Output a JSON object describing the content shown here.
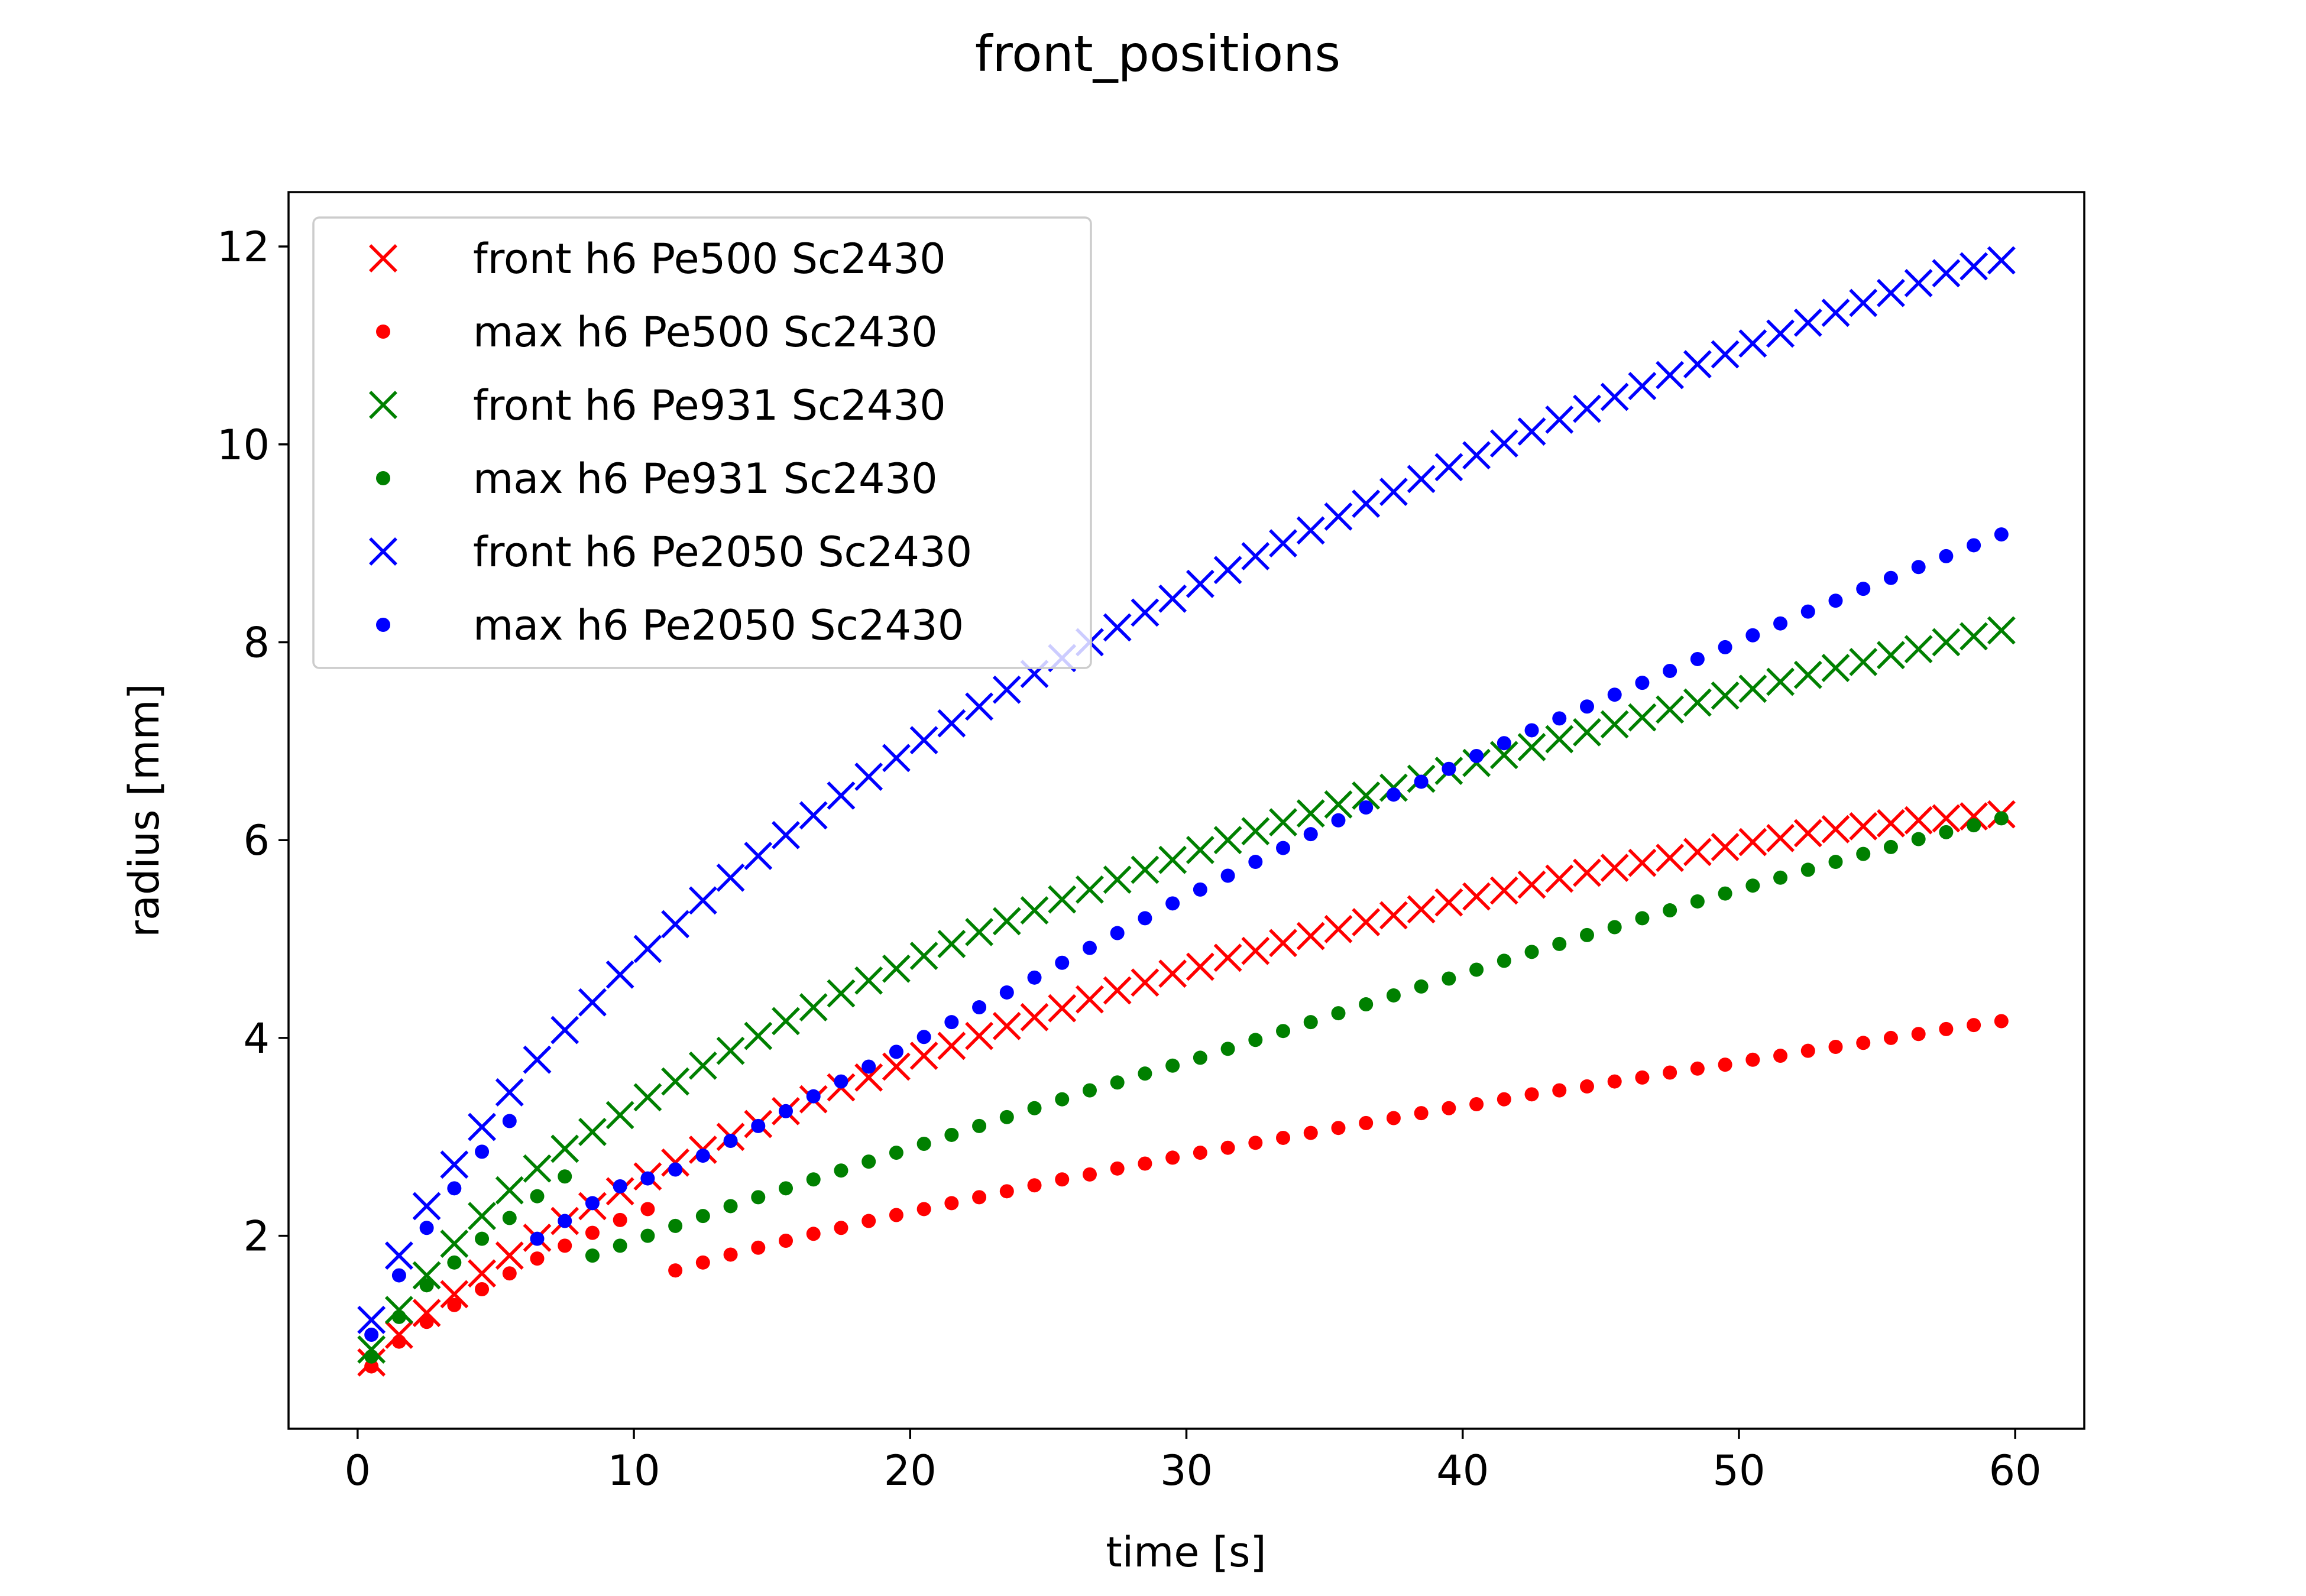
{
  "chart_data": {
    "type": "scatter",
    "title": "front_positions",
    "xlabel": "time [s]",
    "ylabel": "radius [mm]",
    "xlim": [
      -2.5,
      62.5
    ],
    "ylim": [
      0.05,
      12.55
    ],
    "xticks": [
      0,
      10,
      20,
      30,
      40,
      50,
      60
    ],
    "yticks": [
      2,
      4,
      6,
      8,
      10,
      12
    ],
    "grid": false,
    "legend_position": "upper-left",
    "series": [
      {
        "name": "front h6 Pe500 Sc2430",
        "marker": "x",
        "color": "#ff0000",
        "x": [
          0.5,
          1.5,
          2.5,
          3.5,
          4.5,
          5.5,
          6.5,
          7.5,
          8.5,
          9.5,
          10.5,
          11.5,
          12.5,
          13.5,
          14.5,
          15.5,
          16.5,
          17.5,
          18.5,
          19.5,
          20.5,
          21.5,
          22.5,
          23.5,
          24.5,
          25.5,
          26.5,
          27.5,
          28.5,
          29.5,
          30.5,
          31.5,
          32.5,
          33.5,
          34.5,
          35.5,
          36.5,
          37.5,
          38.5,
          39.5,
          40.5,
          41.5,
          42.5,
          43.5,
          44.5,
          45.5,
          46.5,
          47.5,
          48.5,
          49.5,
          50.5,
          51.5,
          52.5,
          53.5,
          54.5,
          55.5,
          56.5,
          57.5,
          58.5,
          59.5
        ],
        "y": [
          0.72,
          1.0,
          1.22,
          1.41,
          1.62,
          1.8,
          1.98,
          2.15,
          2.3,
          2.45,
          2.6,
          2.74,
          2.87,
          3.0,
          3.13,
          3.26,
          3.38,
          3.5,
          3.6,
          3.71,
          3.82,
          3.92,
          4.02,
          4.12,
          4.21,
          4.3,
          4.39,
          4.48,
          4.56,
          4.65,
          4.72,
          4.81,
          4.88,
          4.96,
          5.03,
          5.1,
          5.17,
          5.24,
          5.3,
          5.37,
          5.43,
          5.49,
          5.55,
          5.61,
          5.67,
          5.72,
          5.77,
          5.82,
          5.88,
          5.93,
          5.98,
          6.02,
          6.07,
          6.11,
          6.14,
          6.17,
          6.2,
          6.22,
          6.24,
          6.26
        ]
      },
      {
        "name": "max h6 Pe500 Sc2430",
        "marker": "o",
        "color": "#ff0000",
        "x": [
          0.5,
          1.5,
          2.5,
          3.5,
          4.5,
          5.5,
          6.5,
          7.5,
          8.5,
          9.5,
          10.5,
          11.5,
          12.5,
          13.5,
          14.5,
          15.5,
          16.5,
          17.5,
          18.5,
          19.5,
          20.5,
          21.5,
          22.5,
          23.5,
          24.5,
          25.5,
          26.5,
          27.5,
          28.5,
          29.5,
          30.5,
          31.5,
          32.5,
          33.5,
          34.5,
          35.5,
          36.5,
          37.5,
          38.5,
          39.5,
          40.5,
          41.5,
          42.5,
          43.5,
          44.5,
          45.5,
          46.5,
          47.5,
          48.5,
          49.5,
          50.5,
          51.5,
          52.5,
          53.5,
          54.5,
          55.5,
          56.5,
          57.5,
          58.5,
          59.5
        ],
        "y": [
          0.68,
          0.93,
          1.13,
          1.3,
          1.46,
          1.62,
          1.77,
          1.9,
          2.03,
          2.16,
          2.27,
          1.65,
          1.73,
          1.81,
          1.88,
          1.95,
          2.02,
          2.08,
          2.15,
          2.21,
          2.27,
          2.33,
          2.39,
          2.45,
          2.51,
          2.57,
          2.62,
          2.68,
          2.73,
          2.79,
          2.84,
          2.89,
          2.94,
          2.99,
          3.04,
          3.09,
          3.14,
          3.19,
          3.24,
          3.29,
          3.33,
          3.38,
          3.43,
          3.47,
          3.51,
          3.56,
          3.6,
          3.65,
          3.69,
          3.73,
          3.78,
          3.82,
          3.87,
          3.91,
          3.95,
          4.0,
          4.04,
          4.09,
          4.13,
          4.17
        ]
      },
      {
        "name": "front h6 Pe931 Sc2430",
        "marker": "x",
        "color": "#008000",
        "x": [
          0.5,
          1.5,
          2.5,
          3.5,
          4.5,
          5.5,
          6.5,
          7.5,
          8.5,
          9.5,
          10.5,
          11.5,
          12.5,
          13.5,
          14.5,
          15.5,
          16.5,
          17.5,
          18.5,
          19.5,
          20.5,
          21.5,
          22.5,
          23.5,
          24.5,
          25.5,
          26.5,
          27.5,
          28.5,
          29.5,
          30.5,
          31.5,
          32.5,
          33.5,
          34.5,
          35.5,
          36.5,
          37.5,
          38.5,
          39.5,
          40.5,
          41.5,
          42.5,
          43.5,
          44.5,
          45.5,
          46.5,
          47.5,
          48.5,
          49.5,
          50.5,
          51.5,
          52.5,
          53.5,
          54.5,
          55.5,
          56.5,
          57.5,
          58.5,
          59.5
        ],
        "y": [
          0.85,
          1.25,
          1.6,
          1.92,
          2.2,
          2.46,
          2.68,
          2.88,
          3.05,
          3.22,
          3.4,
          3.56,
          3.72,
          3.87,
          4.02,
          4.17,
          4.31,
          4.45,
          4.58,
          4.7,
          4.83,
          4.95,
          5.07,
          5.18,
          5.29,
          5.4,
          5.5,
          5.6,
          5.7,
          5.8,
          5.9,
          6.0,
          6.09,
          6.18,
          6.27,
          6.36,
          6.45,
          6.53,
          6.62,
          6.7,
          6.78,
          6.86,
          6.94,
          7.02,
          7.09,
          7.17,
          7.24,
          7.32,
          7.39,
          7.46,
          7.53,
          7.6,
          7.67,
          7.74,
          7.8,
          7.87,
          7.93,
          8.0,
          8.06,
          8.12
        ]
      },
      {
        "name": "max h6 Pe931 Sc2430",
        "marker": "o",
        "color": "#008000",
        "x": [
          0.5,
          1.5,
          2.5,
          3.5,
          4.5,
          5.5,
          6.5,
          7.5,
          8.5,
          9.5,
          10.5,
          11.5,
          12.5,
          13.5,
          14.5,
          15.5,
          16.5,
          17.5,
          18.5,
          19.5,
          20.5,
          21.5,
          22.5,
          23.5,
          24.5,
          25.5,
          26.5,
          27.5,
          28.5,
          29.5,
          30.5,
          31.5,
          32.5,
          33.5,
          34.5,
          35.5,
          36.5,
          37.5,
          38.5,
          39.5,
          40.5,
          41.5,
          42.5,
          43.5,
          44.5,
          45.5,
          46.5,
          47.5,
          48.5,
          49.5,
          50.5,
          51.5,
          52.5,
          53.5,
          54.5,
          55.5,
          56.5,
          57.5,
          58.5,
          59.5
        ],
        "y": [
          0.78,
          1.18,
          1.5,
          1.73,
          1.97,
          2.18,
          2.4,
          2.6,
          1.8,
          1.9,
          2.0,
          2.1,
          2.2,
          2.3,
          2.39,
          2.48,
          2.57,
          2.66,
          2.75,
          2.84,
          2.93,
          3.02,
          3.11,
          3.2,
          3.29,
          3.38,
          3.47,
          3.55,
          3.64,
          3.72,
          3.8,
          3.89,
          3.98,
          4.07,
          4.16,
          4.25,
          4.34,
          4.43,
          4.52,
          4.6,
          4.69,
          4.78,
          4.87,
          4.95,
          5.04,
          5.12,
          5.21,
          5.29,
          5.38,
          5.46,
          5.54,
          5.62,
          5.7,
          5.78,
          5.86,
          5.93,
          6.01,
          6.08,
          6.15,
          6.22
        ]
      },
      {
        "name": "front h6 Pe2050 Sc2430",
        "marker": "x",
        "color": "#0000ff",
        "x": [
          0.5,
          1.5,
          2.5,
          3.5,
          4.5,
          5.5,
          6.5,
          7.5,
          8.5,
          9.5,
          10.5,
          11.5,
          12.5,
          13.5,
          14.5,
          15.5,
          16.5,
          17.5,
          18.5,
          19.5,
          20.5,
          21.5,
          22.5,
          23.5,
          24.5,
          25.5,
          26.5,
          27.5,
          28.5,
          29.5,
          30.5,
          31.5,
          32.5,
          33.5,
          34.5,
          35.5,
          36.5,
          37.5,
          38.5,
          39.5,
          40.5,
          41.5,
          42.5,
          43.5,
          44.5,
          45.5,
          46.5,
          47.5,
          48.5,
          49.5,
          50.5,
          51.5,
          52.5,
          53.5,
          54.5,
          55.5,
          56.5,
          57.5,
          58.5,
          59.5
        ],
        "y": [
          1.15,
          1.8,
          2.3,
          2.72,
          3.1,
          3.45,
          3.78,
          4.08,
          4.36,
          4.64,
          4.9,
          5.15,
          5.39,
          5.62,
          5.84,
          6.05,
          6.25,
          6.45,
          6.64,
          6.83,
          7.01,
          7.18,
          7.35,
          7.52,
          7.68,
          7.84,
          8.0,
          8.15,
          8.3,
          8.44,
          8.59,
          8.73,
          8.87,
          9.0,
          9.13,
          9.27,
          9.4,
          9.52,
          9.65,
          9.77,
          9.89,
          10.01,
          10.13,
          10.25,
          10.36,
          10.48,
          10.59,
          10.7,
          10.81,
          10.91,
          11.02,
          11.12,
          11.23,
          11.33,
          11.43,
          11.53,
          11.63,
          11.73,
          11.8,
          11.86
        ]
      },
      {
        "name": "max h6 Pe2050 Sc2430",
        "marker": "o",
        "color": "#0000ff",
        "x": [
          0.5,
          1.5,
          2.5,
          3.5,
          4.5,
          5.5,
          6.5,
          7.5,
          8.5,
          9.5,
          10.5,
          11.5,
          12.5,
          13.5,
          14.5,
          15.5,
          16.5,
          17.5,
          18.5,
          19.5,
          20.5,
          21.5,
          22.5,
          23.5,
          24.5,
          25.5,
          26.5,
          27.5,
          28.5,
          29.5,
          30.5,
          31.5,
          32.5,
          33.5,
          34.5,
          35.5,
          36.5,
          37.5,
          38.5,
          39.5,
          40.5,
          41.5,
          42.5,
          43.5,
          44.5,
          45.5,
          46.5,
          47.5,
          48.5,
          49.5,
          50.5,
          51.5,
          52.5,
          53.5,
          54.5,
          55.5,
          56.5,
          57.5,
          58.5,
          59.5
        ],
        "y": [
          1.0,
          1.6,
          2.08,
          2.48,
          2.85,
          3.16,
          1.97,
          2.15,
          2.33,
          2.5,
          2.58,
          2.67,
          2.81,
          2.96,
          3.11,
          3.26,
          3.41,
          3.56,
          3.71,
          3.86,
          4.01,
          4.16,
          4.31,
          4.46,
          4.61,
          4.76,
          4.91,
          5.06,
          5.21,
          5.36,
          5.5,
          5.64,
          5.78,
          5.92,
          6.06,
          6.2,
          6.33,
          6.46,
          6.59,
          6.72,
          6.85,
          6.98,
          7.11,
          7.23,
          7.35,
          7.47,
          7.59,
          7.71,
          7.83,
          7.95,
          8.07,
          8.19,
          8.31,
          8.42,
          8.54,
          8.65,
          8.76,
          8.87,
          8.98,
          9.09
        ]
      }
    ]
  }
}
